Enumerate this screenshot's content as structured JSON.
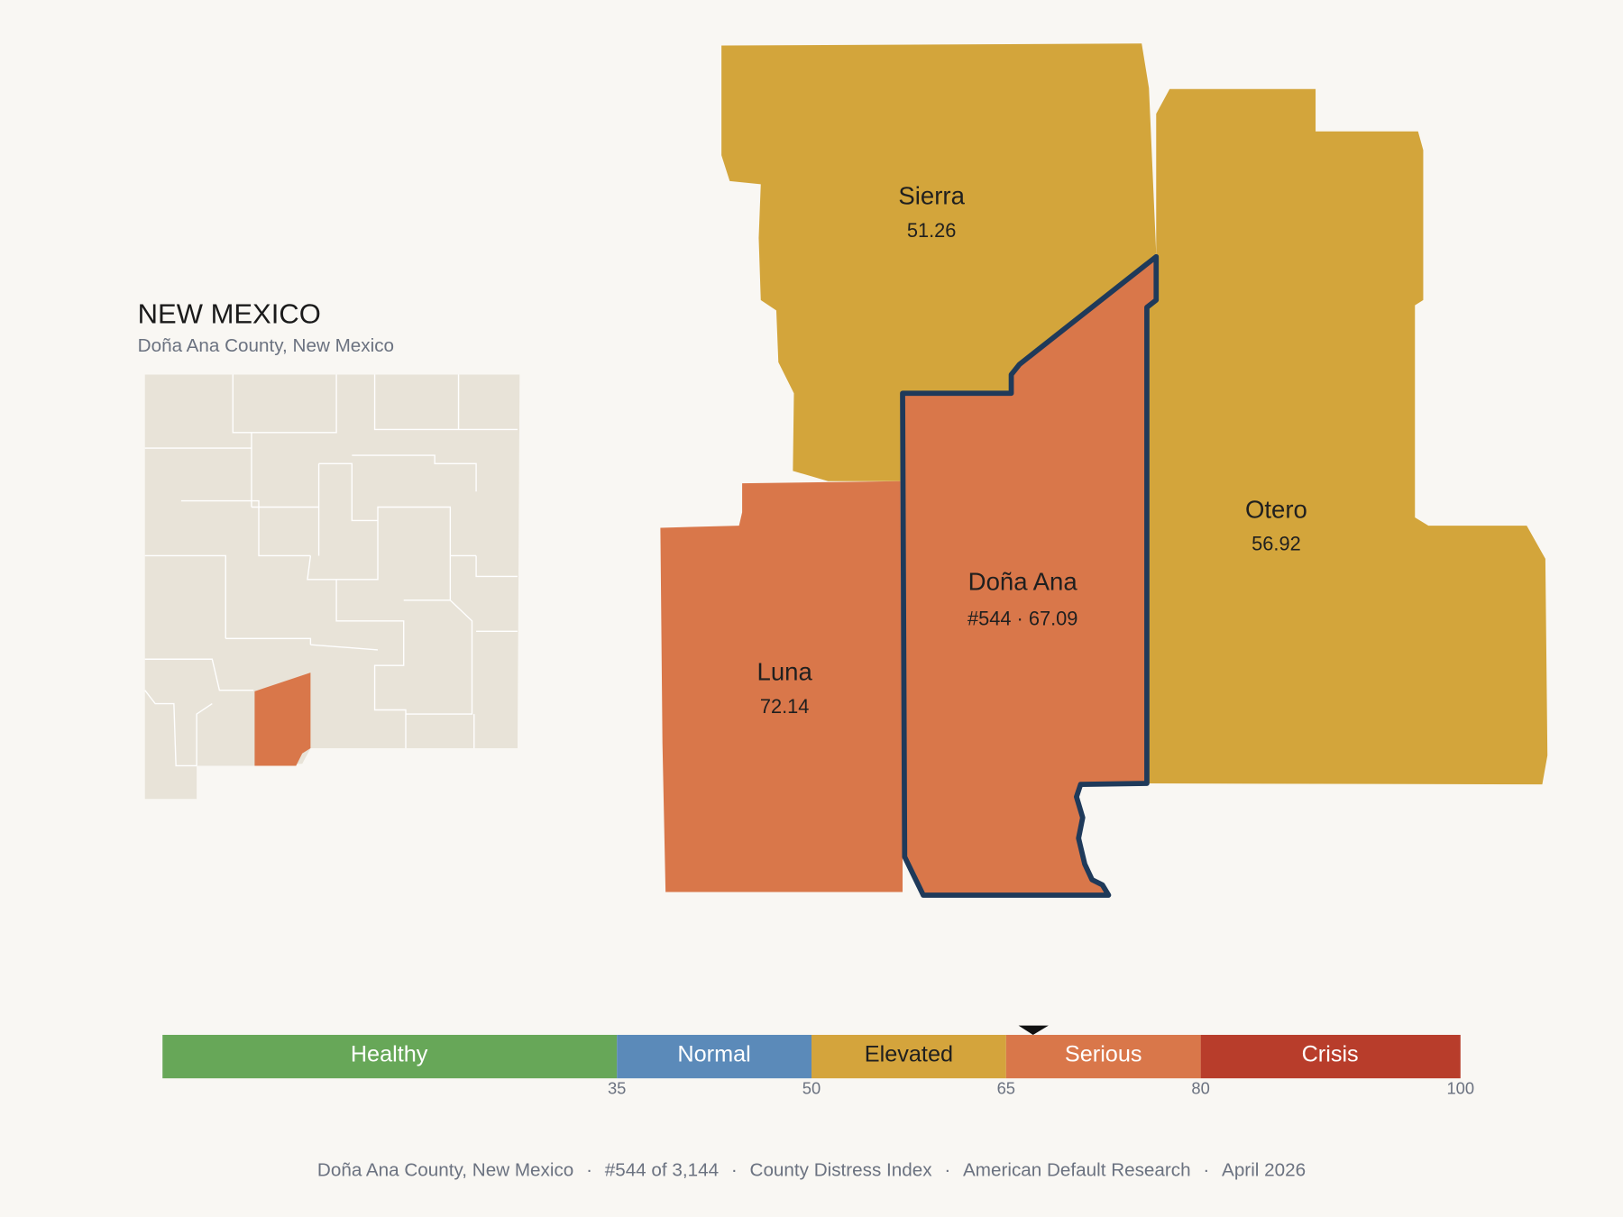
{
  "header": {
    "title": "NEW MEXICO",
    "subtitle": "Doña Ana County, New Mexico"
  },
  "counties": [
    {
      "name": "Sierra",
      "label": "51.26"
    },
    {
      "name": "Otero",
      "label": "56.92"
    },
    {
      "name": "Luna",
      "label": "72.14"
    },
    {
      "name": "Doña Ana",
      "label": "#544 · 67.09"
    }
  ],
  "legend": {
    "bands": [
      "Healthy",
      "Normal",
      "Elevated",
      "Serious",
      "Crisis"
    ],
    "ticks": [
      "35",
      "50",
      "65",
      "80",
      "100"
    ]
  },
  "footer": {
    "items": [
      "Doña Ana County, New Mexico",
      "#544 of 3,144",
      "County Distress Index",
      "American Default Research",
      "April 2026"
    ],
    "separator": "·"
  }
}
